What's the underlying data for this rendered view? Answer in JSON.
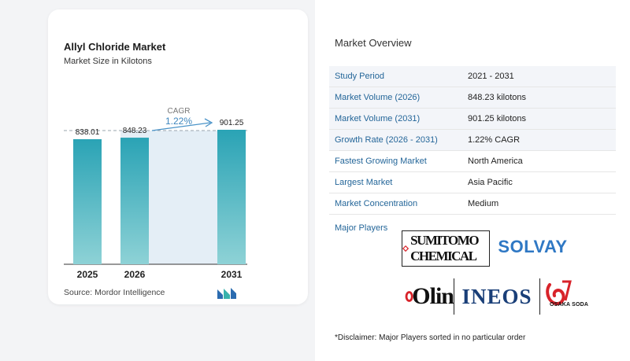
{
  "chart_data": {
    "type": "bar",
    "title": "Allyl Chloride Market",
    "subtitle": "Market Size in Kilotons",
    "categories": [
      "2025",
      "2026",
      "2031"
    ],
    "values": [
      838.01,
      848.23,
      901.25
    ],
    "value_labels": [
      "838.01",
      "848.23",
      "901.25"
    ],
    "annotation": {
      "label": "CAGR",
      "value": "1.22%"
    },
    "xlabel": "",
    "ylabel": "",
    "grid": false,
    "bar_color": "#2eaab8"
  },
  "source": "Source:  Mordor Intelligence",
  "overview": {
    "title": "Market Overview",
    "rows": [
      {
        "label": "Study Period",
        "value": "2021 - 2031"
      },
      {
        "label": "Market Volume (2026)",
        "value": "848.23 kilotons"
      },
      {
        "label": "Market Volume (2031)",
        "value": "901.25 kilotons"
      },
      {
        "label": "Growth Rate (2026 - 2031)",
        "value": "1.22% CAGR"
      },
      {
        "label": "Fastest Growing Market",
        "value": "North America"
      },
      {
        "label": "Largest Market",
        "value": "Asia Pacific"
      },
      {
        "label": "Market Concentration",
        "value": "Medium"
      }
    ],
    "players_label": "Major Players",
    "players": {
      "sumitomo": "SUMITOMO CHEMICAL",
      "solvay": "SOLVAY",
      "olin": "Olin",
      "ineos": "INEOS",
      "osaka": "OSAKA SODA"
    },
    "disclaimer": "*Disclaimer: Major Players sorted in no particular order"
  }
}
